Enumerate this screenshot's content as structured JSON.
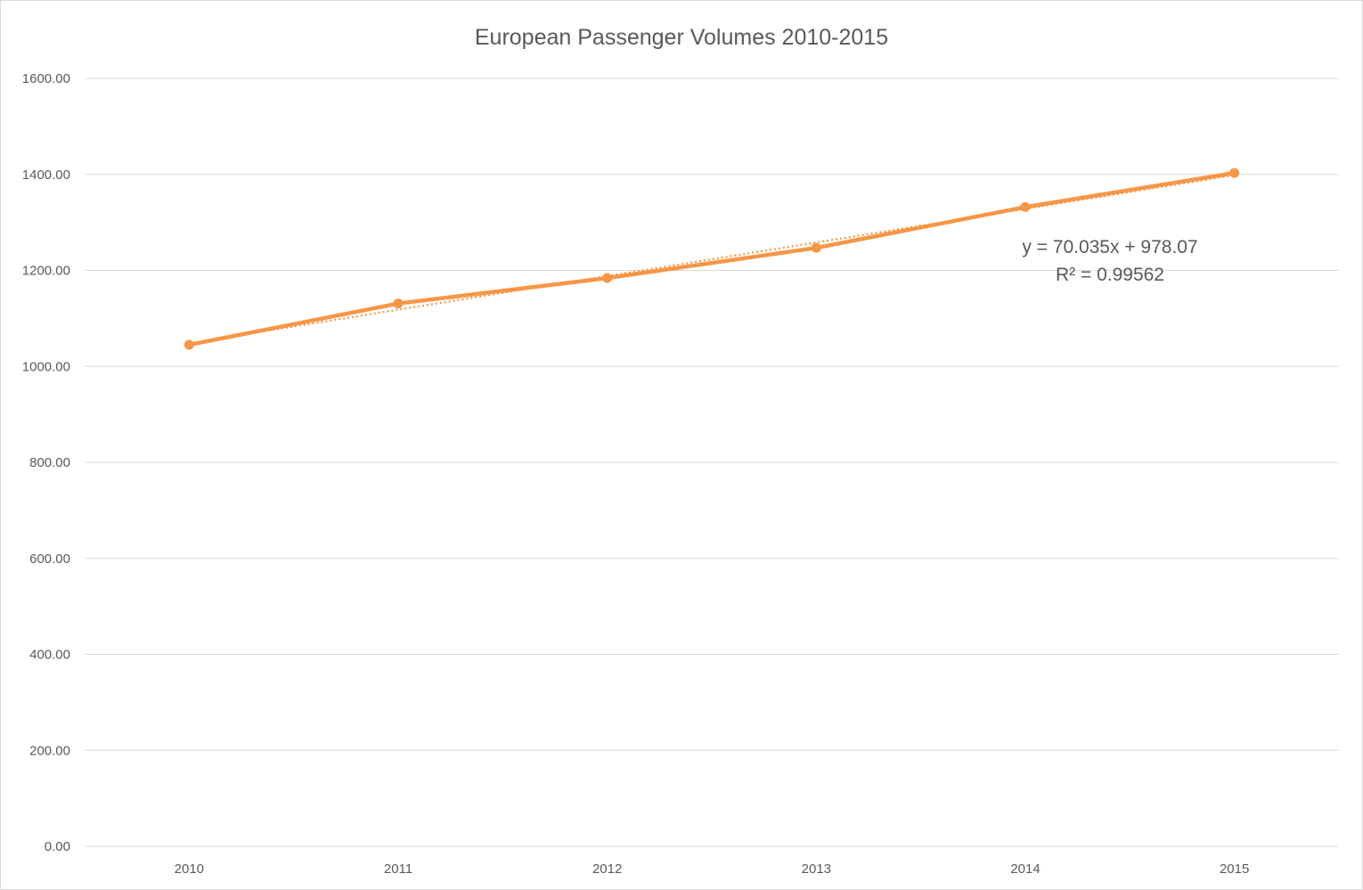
{
  "chart_data": {
    "type": "line",
    "title": "European Passenger Volumes 2010-2015",
    "xlabel": "",
    "ylabel": "",
    "categories": [
      "2010",
      "2011",
      "2012",
      "2013",
      "2014",
      "2015"
    ],
    "series": [
      {
        "values": [
          1045,
          1131,
          1184,
          1247,
          1332,
          1403
        ],
        "color": "#f79646"
      }
    ],
    "trendline": {
      "type": "linear",
      "slope": 70.035,
      "intercept": 978.07,
      "style": "dotted",
      "color": "#f79646",
      "equation_label": "y = 70.035x + 978.07",
      "r2_label": "R² = 0.99562"
    },
    "ylim": [
      0,
      1600
    ],
    "yticks": [
      "0.00",
      "200.00",
      "400.00",
      "600.00",
      "800.00",
      "1000.00",
      "1200.00",
      "1400.00",
      "1600.00"
    ],
    "grid": true,
    "legend": "none"
  }
}
